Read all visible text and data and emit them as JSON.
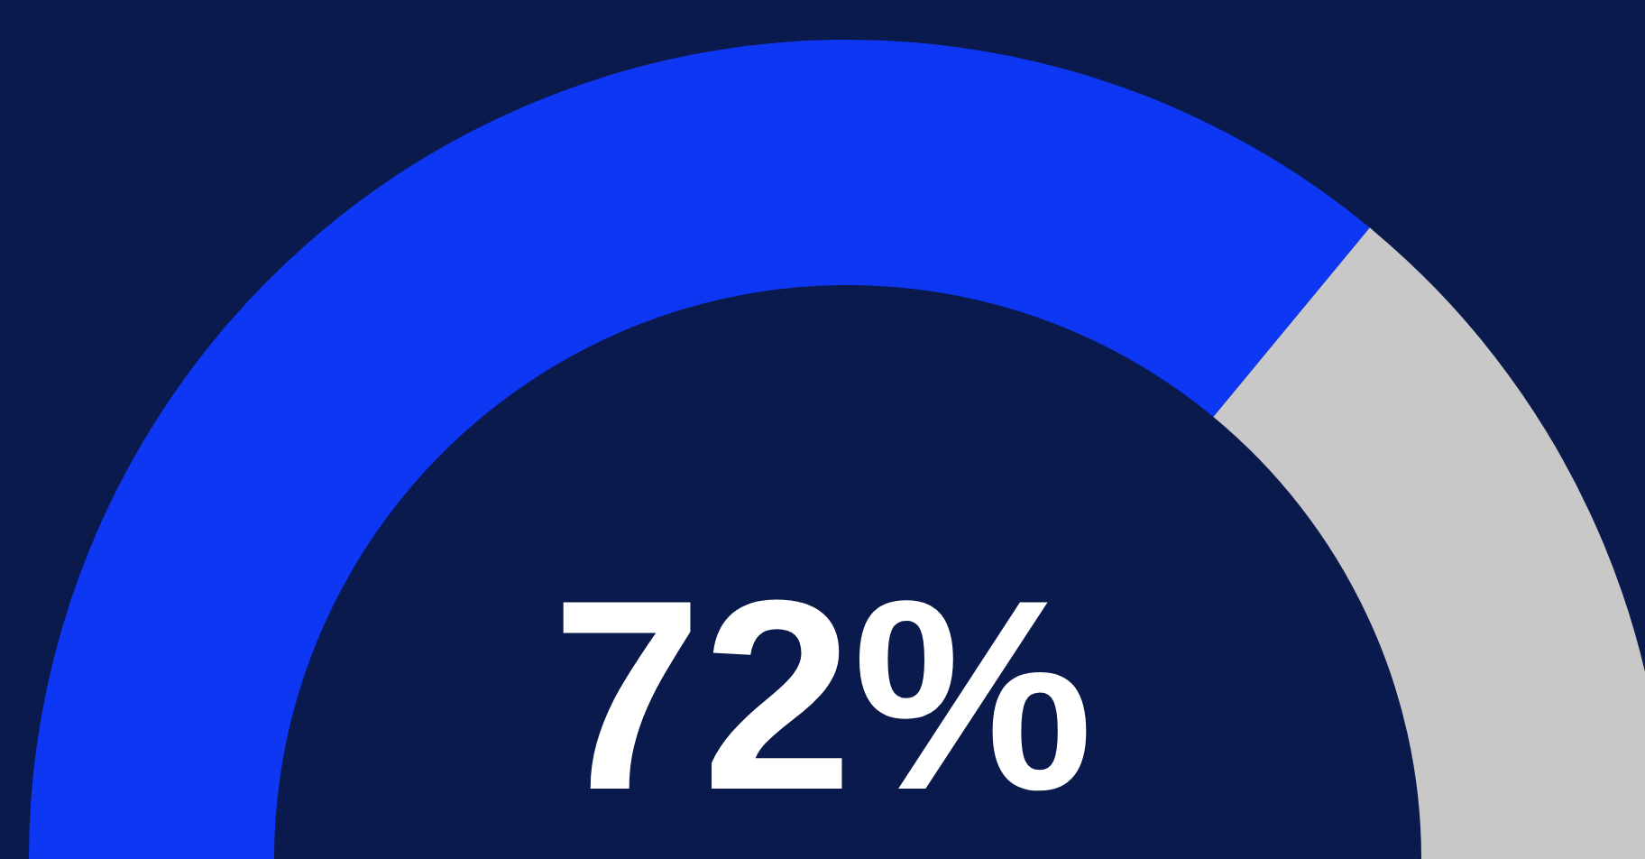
{
  "chart_data": {
    "type": "donut",
    "categories": [
      null,
      null
    ],
    "values": [
      72,
      28
    ],
    "colors": [
      "#0d37f2",
      "#c8c8c8"
    ],
    "annotations": [
      "72%"
    ]
  }
}
